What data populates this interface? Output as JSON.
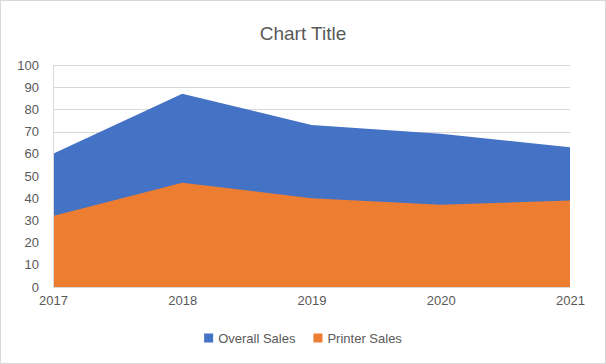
{
  "chart_data": {
    "type": "area",
    "title": "Chart Title",
    "categories": [
      "2017",
      "2018",
      "2019",
      "2020",
      "2021"
    ],
    "series": [
      {
        "name": "Overall Sales",
        "color": "#4472c4",
        "values": [
          60,
          87,
          73,
          69,
          63
        ]
      },
      {
        "name": "Printer Sales",
        "color": "#ed7d31",
        "values": [
          32,
          47,
          40,
          37,
          39
        ]
      }
    ],
    "ylim": [
      0,
      100
    ],
    "yticks": [
      0,
      10,
      20,
      30,
      40,
      50,
      60,
      70,
      80,
      90,
      100
    ],
    "grid": true,
    "legend": "bottom",
    "stacked": false
  }
}
